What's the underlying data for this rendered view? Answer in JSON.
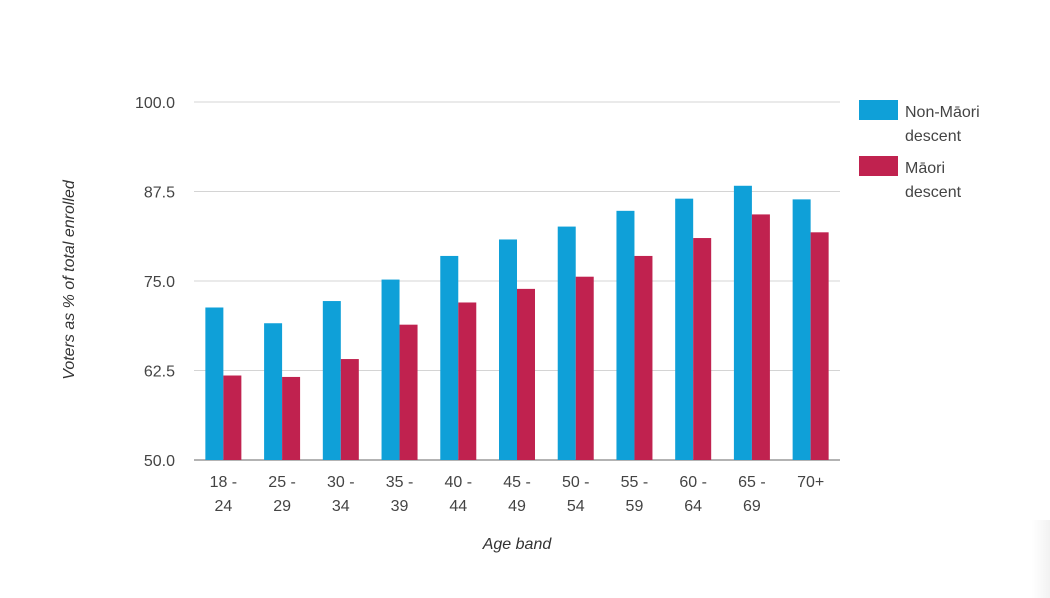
{
  "chart_data": {
    "type": "bar",
    "title": "",
    "xlabel": "Age band",
    "ylabel": "Voters as % of total enrolled",
    "ylim": [
      50,
      100
    ],
    "yticks": [
      "50.0",
      "62.5",
      "75.0",
      "87.5",
      "100.0"
    ],
    "grid": true,
    "legend_position": "right",
    "categories": [
      "18 - 24",
      "25 - 29",
      "30 - 34",
      "35 - 39",
      "40 - 44",
      "45 - 49",
      "50 - 54",
      "55 - 59",
      "60 - 64",
      "65 - 69",
      "70+"
    ],
    "series": [
      {
        "name": "Non-Māori descent",
        "color": "#0fa0d8",
        "values": [
          71.3,
          69.1,
          72.2,
          75.2,
          78.5,
          80.8,
          82.6,
          84.8,
          86.5,
          88.3,
          86.4
        ]
      },
      {
        "name": "Māori descent",
        "color": "#c0224f",
        "values": [
          61.8,
          61.6,
          64.1,
          68.9,
          72.0,
          73.9,
          75.6,
          78.5,
          81.0,
          84.3,
          81.8
        ]
      }
    ]
  }
}
